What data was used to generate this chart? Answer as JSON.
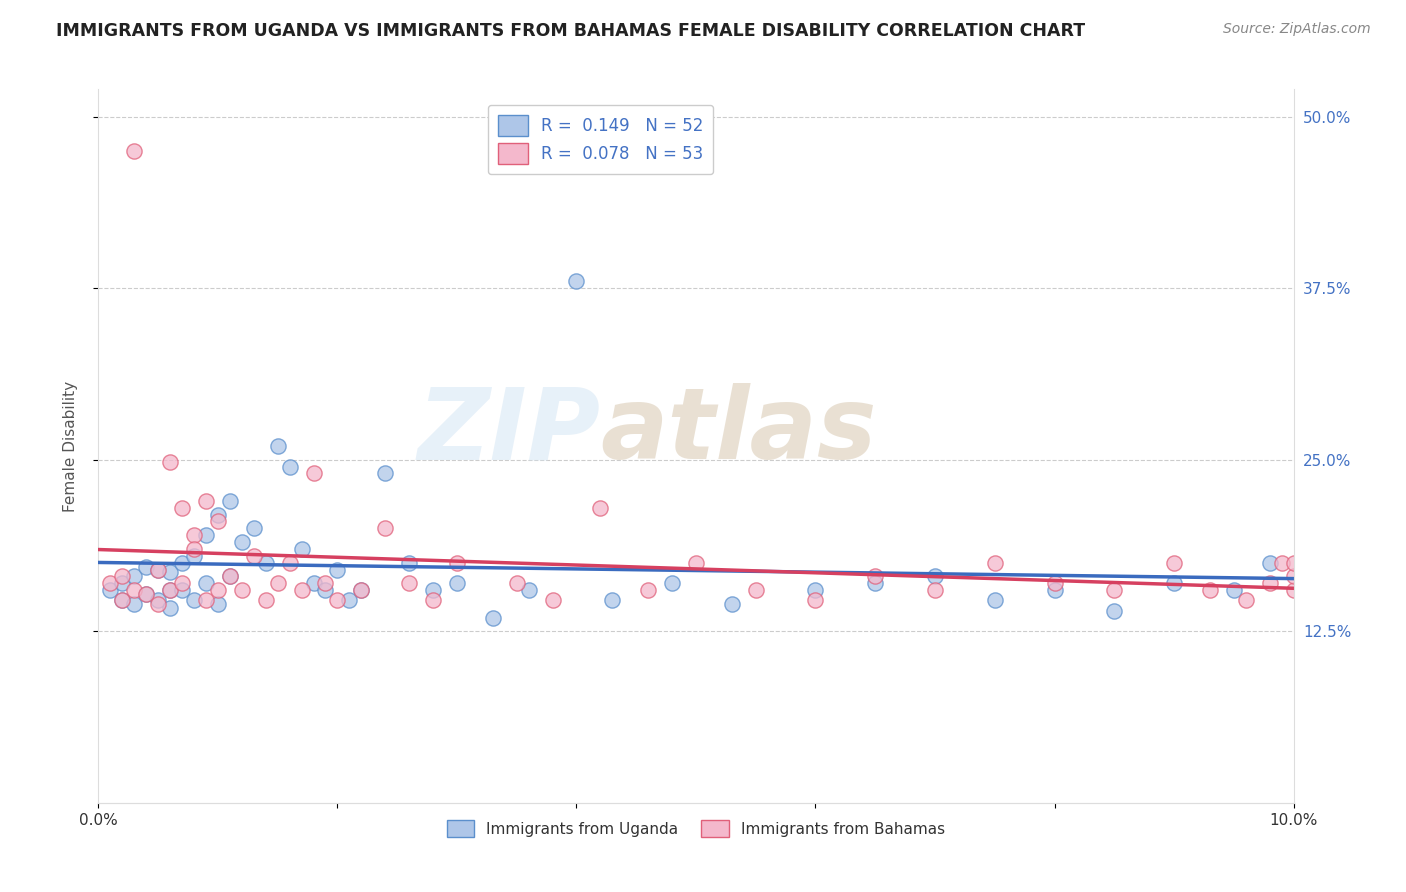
{
  "title": "IMMIGRANTS FROM UGANDA VS IMMIGRANTS FROM BAHAMAS FEMALE DISABILITY CORRELATION CHART",
  "source": "Source: ZipAtlas.com",
  "ylabel": "Female Disability",
  "xlim": [
    0.0,
    0.1
  ],
  "ylim": [
    0.0,
    0.52
  ],
  "yticks": [
    0.125,
    0.25,
    0.375,
    0.5
  ],
  "ytick_labels": [
    "12.5%",
    "25.0%",
    "37.5%",
    "50.0%"
  ],
  "legend_R1": "0.149",
  "legend_N1": "52",
  "legend_R2": "0.078",
  "legend_N2": "53",
  "uganda_color": "#aec6e8",
  "bahamas_color": "#f4b8cc",
  "uganda_edge_color": "#5b8fcc",
  "bahamas_edge_color": "#e0607a",
  "uganda_line_color": "#3a6bbf",
  "bahamas_line_color": "#d64060",
  "watermark_zip": "ZIP",
  "watermark_atlas": "atlas",
  "uganda_x": [
    0.001,
    0.002,
    0.002,
    0.003,
    0.003,
    0.004,
    0.004,
    0.005,
    0.005,
    0.006,
    0.006,
    0.006,
    0.007,
    0.007,
    0.008,
    0.008,
    0.009,
    0.009,
    0.01,
    0.01,
    0.011,
    0.011,
    0.012,
    0.013,
    0.014,
    0.015,
    0.016,
    0.017,
    0.018,
    0.019,
    0.02,
    0.021,
    0.022,
    0.024,
    0.026,
    0.028,
    0.03,
    0.033,
    0.036,
    0.04,
    0.043,
    0.048,
    0.053,
    0.06,
    0.065,
    0.07,
    0.075,
    0.08,
    0.085,
    0.09,
    0.095,
    0.098
  ],
  "uganda_y": [
    0.155,
    0.148,
    0.16,
    0.145,
    0.165,
    0.152,
    0.172,
    0.148,
    0.17,
    0.155,
    0.142,
    0.168,
    0.175,
    0.155,
    0.18,
    0.148,
    0.195,
    0.16,
    0.21,
    0.145,
    0.22,
    0.165,
    0.19,
    0.2,
    0.175,
    0.26,
    0.245,
    0.185,
    0.16,
    0.155,
    0.17,
    0.148,
    0.155,
    0.24,
    0.175,
    0.155,
    0.16,
    0.135,
    0.155,
    0.38,
    0.148,
    0.16,
    0.145,
    0.155,
    0.16,
    0.165,
    0.148,
    0.155,
    0.14,
    0.16,
    0.155,
    0.175
  ],
  "bahamas_x": [
    0.001,
    0.002,
    0.002,
    0.003,
    0.003,
    0.004,
    0.005,
    0.005,
    0.006,
    0.006,
    0.007,
    0.007,
    0.008,
    0.008,
    0.009,
    0.009,
    0.01,
    0.01,
    0.011,
    0.012,
    0.013,
    0.014,
    0.015,
    0.016,
    0.017,
    0.018,
    0.019,
    0.02,
    0.022,
    0.024,
    0.026,
    0.028,
    0.03,
    0.035,
    0.038,
    0.042,
    0.046,
    0.05,
    0.055,
    0.06,
    0.065,
    0.07,
    0.075,
    0.08,
    0.085,
    0.09,
    0.093,
    0.096,
    0.098,
    0.099,
    0.1,
    0.1,
    0.1
  ],
  "bahamas_y": [
    0.16,
    0.148,
    0.165,
    0.155,
    0.475,
    0.152,
    0.17,
    0.145,
    0.248,
    0.155,
    0.16,
    0.215,
    0.195,
    0.185,
    0.22,
    0.148,
    0.205,
    0.155,
    0.165,
    0.155,
    0.18,
    0.148,
    0.16,
    0.175,
    0.155,
    0.24,
    0.16,
    0.148,
    0.155,
    0.2,
    0.16,
    0.148,
    0.175,
    0.16,
    0.148,
    0.215,
    0.155,
    0.175,
    0.155,
    0.148,
    0.165,
    0.155,
    0.175,
    0.16,
    0.155,
    0.175,
    0.155,
    0.148,
    0.16,
    0.175,
    0.155,
    0.165,
    0.175
  ]
}
